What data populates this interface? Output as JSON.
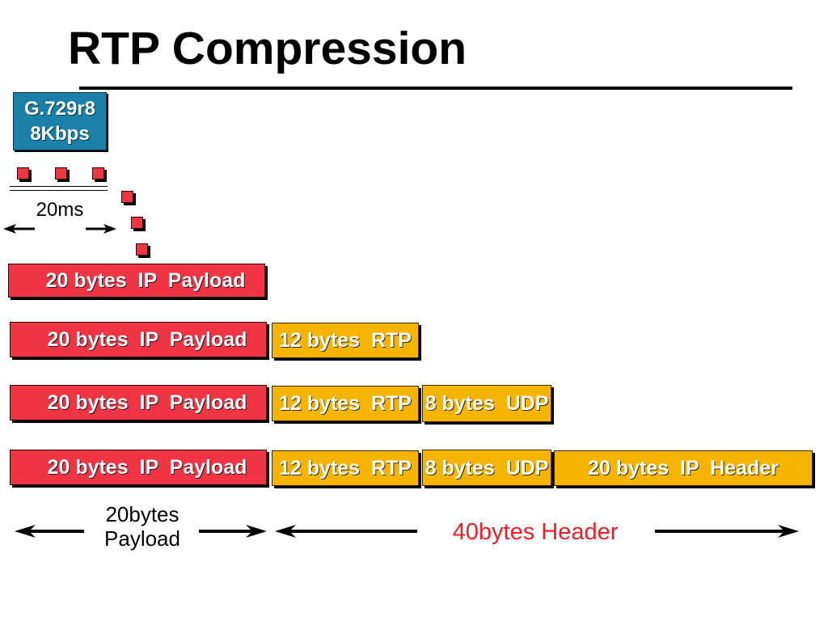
{
  "title": "RTP Compression",
  "codec": {
    "name": "G.729r8",
    "rate": "8Kbps"
  },
  "frame_interval": "20ms",
  "rows": [
    {
      "segments": [
        {
          "label": "20 bytes  IP  Payload"
        }
      ]
    },
    {
      "segments": [
        {
          "label": "20 bytes  IP  Payload"
        },
        {
          "label": "12 bytes  RTP"
        }
      ]
    },
    {
      "segments": [
        {
          "label": "20 bytes  IP  Payload"
        },
        {
          "label": "12 bytes  RTP"
        },
        {
          "label": "8 bytes  UDP"
        }
      ]
    },
    {
      "segments": [
        {
          "label": "20 bytes  IP  Payload"
        },
        {
          "label": "12 bytes  RTP"
        },
        {
          "label": "8 bytes  UDP"
        },
        {
          "label": "20 bytes  IP  Header"
        }
      ]
    }
  ],
  "spans": {
    "payload": {
      "line1": "20bytes",
      "line2": "Payload"
    },
    "header": {
      "label": "40bytes Header"
    }
  },
  "colors": {
    "payload": "#ef3443",
    "header_segment": "#f4b400",
    "codec_box": "#1a80a8",
    "header_label": "#e8202a"
  }
}
